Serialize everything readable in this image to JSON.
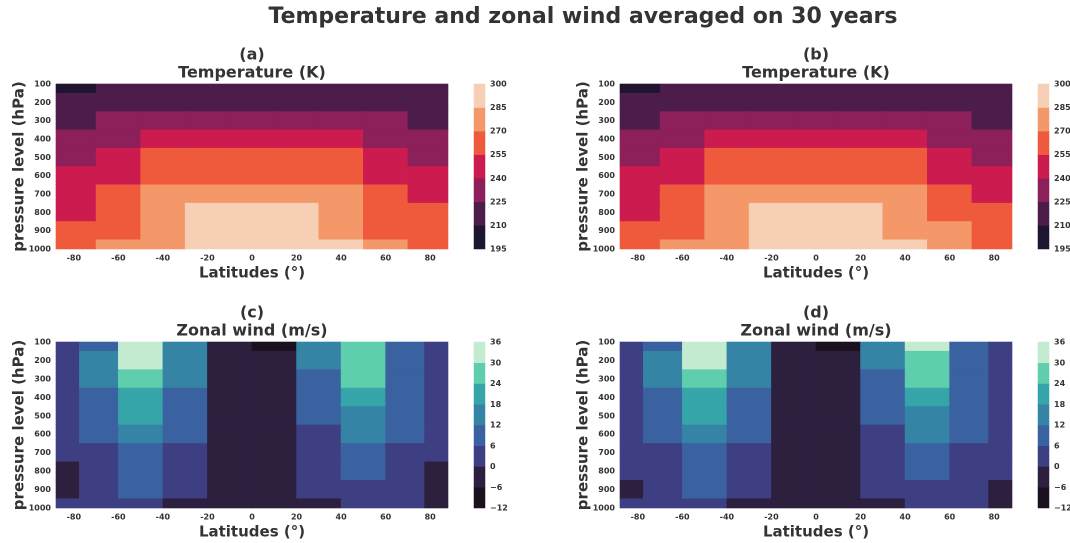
{
  "title": "Temperature and zonal wind averaged on 30 years",
  "chart_data": [
    {
      "type": "contourf",
      "panel": "(a)",
      "title": "Temperature (K)",
      "xlabel": "Latitudes (°)",
      "ylabel": "pressure level (hPa)",
      "x": [
        -80,
        -60,
        -40,
        -20,
        0,
        20,
        40,
        60,
        80
      ],
      "y": [
        100,
        200,
        300,
        400,
        500,
        600,
        700,
        800,
        900,
        1000
      ],
      "z": [
        [
          208,
          218,
          220,
          220,
          220,
          220,
          220,
          218,
          216
        ],
        [
          218,
          220,
          222,
          222,
          222,
          222,
          222,
          220,
          218
        ],
        [
          222,
          226,
          232,
          235,
          235,
          235,
          232,
          226,
          222
        ],
        [
          228,
          234,
          242,
          246,
          247,
          246,
          242,
          234,
          228
        ],
        [
          234,
          242,
          256,
          258,
          258,
          258,
          256,
          242,
          235
        ],
        [
          240,
          248,
          262,
          266,
          267,
          266,
          262,
          250,
          242
        ],
        [
          246,
          256,
          270,
          274,
          275,
          274,
          270,
          258,
          248
        ],
        [
          250,
          262,
          276,
          286,
          287,
          286,
          278,
          264,
          256
        ],
        [
          256,
          266,
          280,
          290,
          291,
          290,
          284,
          268,
          258
        ],
        [
          256,
          270,
          284,
          292,
          294,
          292,
          286,
          270,
          260
        ]
      ],
      "levels": [
        195,
        210,
        225,
        240,
        255,
        270,
        285,
        300
      ],
      "colors": [
        "#1f1530",
        "#4c1d4b",
        "#8d1f5a",
        "#cb1b4f",
        "#ee5a3b",
        "#f49869",
        "#f6cfb5"
      ],
      "xlim": [
        -88,
        88
      ],
      "ylim": [
        1000,
        100
      ],
      "xticks": [
        -80,
        -60,
        -40,
        -20,
        0,
        20,
        40,
        60,
        80
      ],
      "yticks": [
        100,
        200,
        300,
        400,
        500,
        600,
        700,
        800,
        900,
        1000
      ]
    },
    {
      "type": "contourf",
      "panel": "(b)",
      "title": "Temperature (K)",
      "xlabel": "Latitudes (°)",
      "ylabel": "pressure level (hPa)",
      "x": [
        -80,
        -60,
        -40,
        -20,
        0,
        20,
        40,
        60,
        80
      ],
      "y": [
        100,
        200,
        300,
        400,
        500,
        600,
        700,
        800,
        900,
        1000
      ],
      "z": [
        [
          208,
          218,
          220,
          220,
          220,
          220,
          220,
          218,
          216
        ],
        [
          218,
          220,
          222,
          222,
          222,
          222,
          222,
          220,
          218
        ],
        [
          222,
          228,
          233,
          236,
          236,
          236,
          233,
          228,
          222
        ],
        [
          228,
          235,
          243,
          248,
          248,
          248,
          243,
          235,
          229
        ],
        [
          234,
          244,
          256,
          258,
          259,
          258,
          256,
          244,
          236
        ],
        [
          240,
          250,
          262,
          267,
          268,
          267,
          263,
          252,
          243
        ],
        [
          246,
          258,
          270,
          276,
          276,
          276,
          271,
          260,
          250
        ],
        [
          250,
          264,
          278,
          286,
          288,
          286,
          280,
          266,
          256
        ],
        [
          256,
          268,
          282,
          290,
          292,
          290,
          284,
          270,
          262
        ],
        [
          258,
          270,
          284,
          292,
          294,
          292,
          286,
          272,
          262
        ]
      ],
      "levels": [
        195,
        210,
        225,
        240,
        255,
        270,
        285,
        300
      ],
      "colors": [
        "#1f1530",
        "#4c1d4b",
        "#8d1f5a",
        "#cb1b4f",
        "#ee5a3b",
        "#f49869",
        "#f6cfb5"
      ],
      "xlim": [
        -88,
        88
      ],
      "ylim": [
        1000,
        100
      ],
      "xticks": [
        -80,
        -60,
        -40,
        -20,
        0,
        20,
        40,
        60,
        80
      ],
      "yticks": [
        100,
        200,
        300,
        400,
        500,
        600,
        700,
        800,
        900,
        1000
      ]
    },
    {
      "type": "contourf",
      "panel": "(c)",
      "title": "Zonal wind (m/s)",
      "xlabel": "Latitudes (°)",
      "ylabel": "pressure level (hPa)",
      "x": [
        -85,
        -70,
        -50,
        -30,
        -10,
        10,
        30,
        50,
        70,
        85
      ],
      "y": [
        100,
        200,
        300,
        400,
        500,
        600,
        700,
        800,
        900,
        1000
      ],
      "z": [
        [
          4,
          10,
          32,
          14,
          -6,
          -8,
          12,
          28,
          8,
          4
        ],
        [
          4,
          12,
          32,
          16,
          -4,
          -6,
          12,
          28,
          10,
          4
        ],
        [
          3,
          12,
          28,
          14,
          -2,
          -4,
          10,
          24,
          10,
          3
        ],
        [
          2,
          10,
          22,
          10,
          -2,
          -2,
          8,
          20,
          10,
          3
        ],
        [
          2,
          8,
          18,
          8,
          -2,
          -2,
          6,
          16,
          8,
          2
        ],
        [
          2,
          6,
          14,
          6,
          -2,
          -2,
          4,
          12,
          6,
          2
        ],
        [
          1,
          4,
          10,
          3,
          -3,
          -2,
          2,
          8,
          4,
          0
        ],
        [
          -1,
          3,
          8,
          1,
          -3,
          -3,
          1,
          6,
          2,
          -1
        ],
        [
          -1,
          2,
          6,
          0,
          -3,
          -3,
          0,
          5,
          1,
          -2
        ],
        [
          1,
          1,
          4,
          -1,
          -3,
          -3,
          -1,
          4,
          1,
          -2
        ]
      ],
      "levels": [
        {
          "value": -12,
          "label": "−12"
        },
        {
          "value": -6,
          "label": "−6"
        },
        0,
        6,
        12,
        18,
        24,
        30,
        36
      ],
      "colors": [
        "#1b1020",
        "#2d1f3e",
        "#3e3f82",
        "#3b62a0",
        "#3584a5",
        "#36a5a9",
        "#5fceac",
        "#c3ebd0"
      ],
      "xlim": [
        -88,
        88
      ],
      "ylim": [
        1000,
        100
      ],
      "xticks": [
        -80,
        -60,
        -40,
        -20,
        0,
        20,
        40,
        60,
        80
      ],
      "yticks": [
        100,
        200,
        300,
        400,
        500,
        600,
        700,
        800,
        900,
        1000
      ]
    },
    {
      "type": "contourf",
      "panel": "(d)",
      "title": "Zonal wind (m/s)",
      "xlabel": "Latitudes (°)",
      "ylabel": "pressure level (hPa)",
      "x": [
        -85,
        -70,
        -50,
        -30,
        -10,
        10,
        30,
        50,
        70,
        85
      ],
      "y": [
        100,
        200,
        300,
        400,
        500,
        600,
        700,
        800,
        900,
        1000
      ],
      "z": [
        [
          4,
          10,
          32,
          14,
          -6,
          -8,
          12,
          30,
          8,
          4
        ],
        [
          4,
          12,
          32,
          16,
          -4,
          -6,
          12,
          28,
          10,
          4
        ],
        [
          3,
          12,
          28,
          14,
          -2,
          -4,
          10,
          24,
          10,
          3
        ],
        [
          2,
          10,
          22,
          10,
          -2,
          -2,
          8,
          20,
          10,
          3
        ],
        [
          2,
          8,
          18,
          8,
          -2,
          -2,
          6,
          16,
          8,
          2
        ],
        [
          2,
          6,
          14,
          6,
          -2,
          -2,
          4,
          12,
          6,
          2
        ],
        [
          1,
          4,
          10,
          3,
          -3,
          -2,
          2,
          8,
          4,
          1
        ],
        [
          1,
          3,
          8,
          1,
          -3,
          -3,
          1,
          6,
          2,
          0
        ],
        [
          -1,
          2,
          6,
          0,
          -3,
          -3,
          0,
          5,
          1,
          -1
        ],
        [
          1,
          1,
          4,
          -1,
          -3,
          -3,
          -1,
          4,
          1,
          -1
        ]
      ],
      "levels": [
        {
          "value": -12,
          "label": "−12"
        },
        {
          "value": -6,
          "label": "−6"
        },
        0,
        6,
        12,
        18,
        24,
        30,
        36
      ],
      "colors": [
        "#1b1020",
        "#2d1f3e",
        "#3e3f82",
        "#3b62a0",
        "#3584a5",
        "#36a5a9",
        "#5fceac",
        "#c3ebd0"
      ],
      "xlim": [
        -88,
        88
      ],
      "ylim": [
        1000,
        100
      ],
      "xticks": [
        -80,
        -60,
        -40,
        -20,
        0,
        20,
        40,
        60,
        80
      ],
      "yticks": [
        100,
        200,
        300,
        400,
        500,
        600,
        700,
        800,
        900,
        1000
      ]
    }
  ]
}
